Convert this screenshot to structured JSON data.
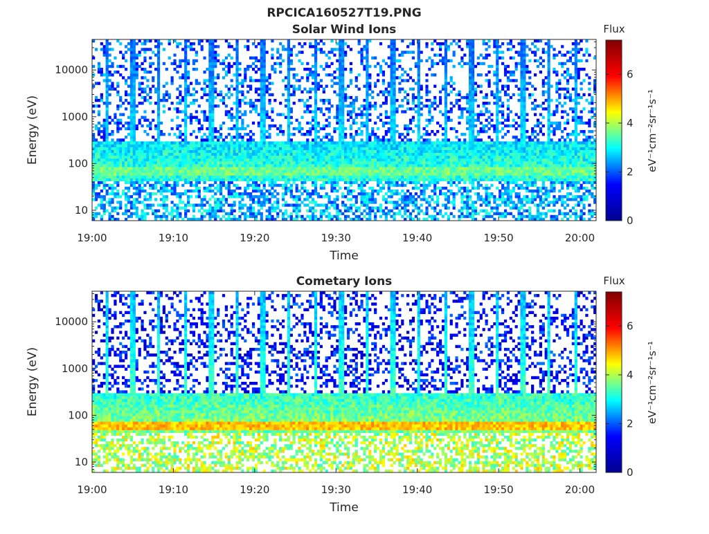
{
  "figure_title": "RPCICA160527T19.PNG",
  "colors": {
    "colormap": [
      "#00008f",
      "#0000ff",
      "#00ffff",
      "#ffff00",
      "#ff0000",
      "#800000"
    ],
    "axes": "#262626",
    "background": "#ffffff"
  },
  "chart_data": [
    {
      "type": "heatmap",
      "title": "Solar Wind Ions",
      "xlabel": "Time",
      "ylabel": "Energy (eV)",
      "xticks": [
        "19:00",
        "19:10",
        "19:20",
        "19:30",
        "19:40",
        "19:50",
        "20:00"
      ],
      "xlim": [
        "19:00",
        "20:02"
      ],
      "yscale": "log",
      "ylim": [
        6,
        45000
      ],
      "yticks": [
        "10",
        "100",
        "1000",
        "10000"
      ],
      "colorbar": {
        "label": "Flux",
        "unit": "eV⁻¹cm⁻²sr⁻¹s⁻¹",
        "range": [
          0,
          7.4
        ],
        "ticks": [
          "0",
          "2",
          "4",
          "6"
        ]
      },
      "sweep_period_min": 3.2,
      "profile": {
        "background": 2.8,
        "band_energy": 70,
        "band_peak": 3.6,
        "sparse_high": 1.2,
        "low_energy_level": 2.5
      }
    },
    {
      "type": "heatmap",
      "title": "Cometary Ions",
      "xlabel": "Time",
      "ylabel": "Energy (eV)",
      "xticks": [
        "19:00",
        "19:10",
        "19:20",
        "19:30",
        "19:40",
        "19:50",
        "20:00"
      ],
      "xlim": [
        "19:00",
        "20:02"
      ],
      "yscale": "log",
      "ylim": [
        6,
        45000
      ],
      "yticks": [
        "10",
        "100",
        "1000",
        "10000"
      ],
      "colorbar": {
        "label": "Flux",
        "unit": "eV⁻¹cm⁻²sr⁻¹s⁻¹",
        "range": [
          0,
          7.4
        ],
        "ticks": [
          "0",
          "2",
          "4",
          "6"
        ]
      },
      "sweep_period_min": 3.2,
      "profile": {
        "background": 3.3,
        "band_energy": 60,
        "band_peak": 4.8,
        "sparse_high": 0.6,
        "low_energy_level": 4.0
      }
    }
  ]
}
